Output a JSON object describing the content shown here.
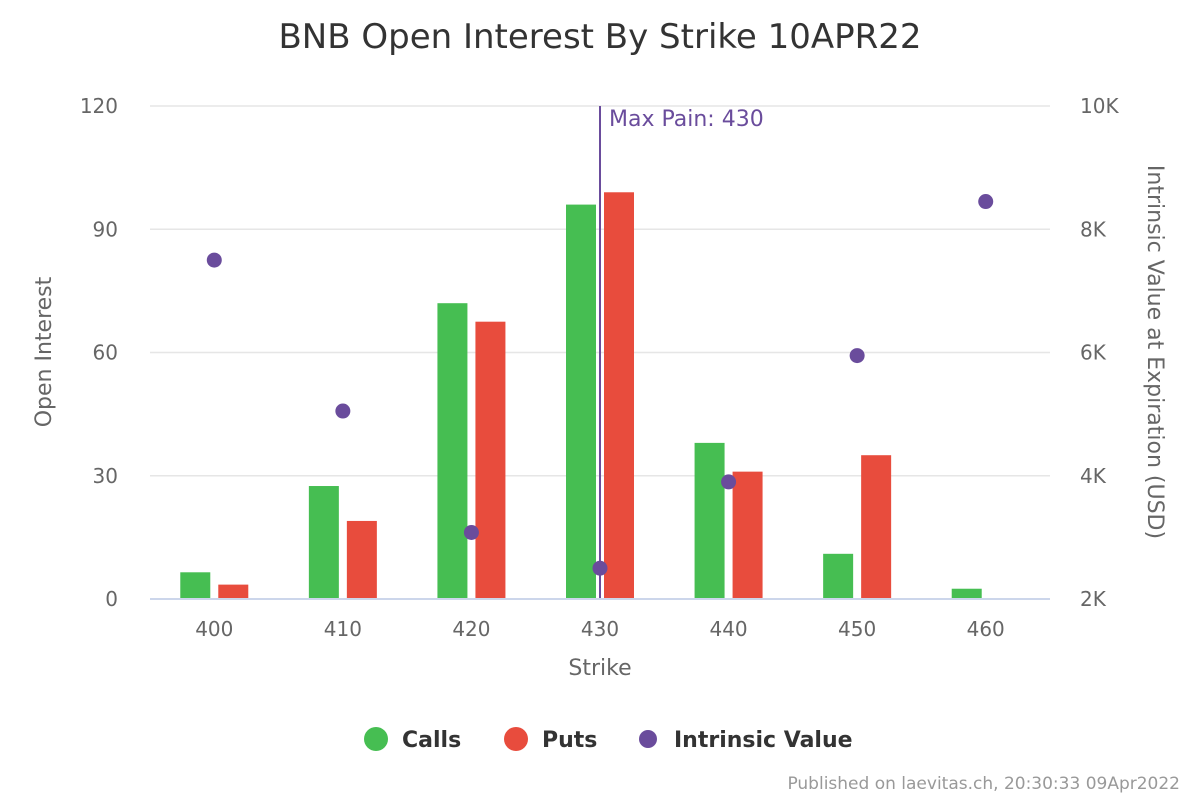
{
  "chart_data": {
    "type": "bar",
    "title": "BNB Open Interest By Strike 10APR22",
    "xlabel": "Strike",
    "ylabel": "Open Interest",
    "y2label": "Intrinsic Value at Expiration (USD)",
    "categories": [
      "400",
      "410",
      "420",
      "430",
      "440",
      "450",
      "460"
    ],
    "ylim": [
      0,
      120
    ],
    "yticks": [
      0,
      30,
      60,
      90,
      120
    ],
    "y2lim": [
      2000,
      10000
    ],
    "y2ticks": [
      2000,
      4000,
      6000,
      8000,
      10000
    ],
    "y2tick_labels": [
      "2K",
      "4K",
      "6K",
      "8K",
      "10K"
    ],
    "series": [
      {
        "name": "Calls",
        "type": "bar",
        "axis": "left",
        "color": "#46be52",
        "values": [
          6.5,
          27.5,
          72,
          96,
          38,
          11,
          2.5
        ]
      },
      {
        "name": "Puts",
        "type": "bar",
        "axis": "left",
        "color": "#e84c3d",
        "values": [
          3.5,
          19,
          67.5,
          99,
          31,
          35,
          0
        ]
      },
      {
        "name": "Intrinsic Value",
        "type": "scatter",
        "axis": "right",
        "color": "#6a4c9c",
        "values": [
          7500,
          5050,
          3080,
          2500,
          3900,
          5950,
          8450
        ]
      }
    ],
    "annotation": {
      "text": "Max Pain: 430",
      "category": "430",
      "color": "#6a4c9c"
    },
    "legend_position": "bottom",
    "grid": true
  },
  "credit": "Published on laevitas.ch, 20:30:33 09Apr2022"
}
